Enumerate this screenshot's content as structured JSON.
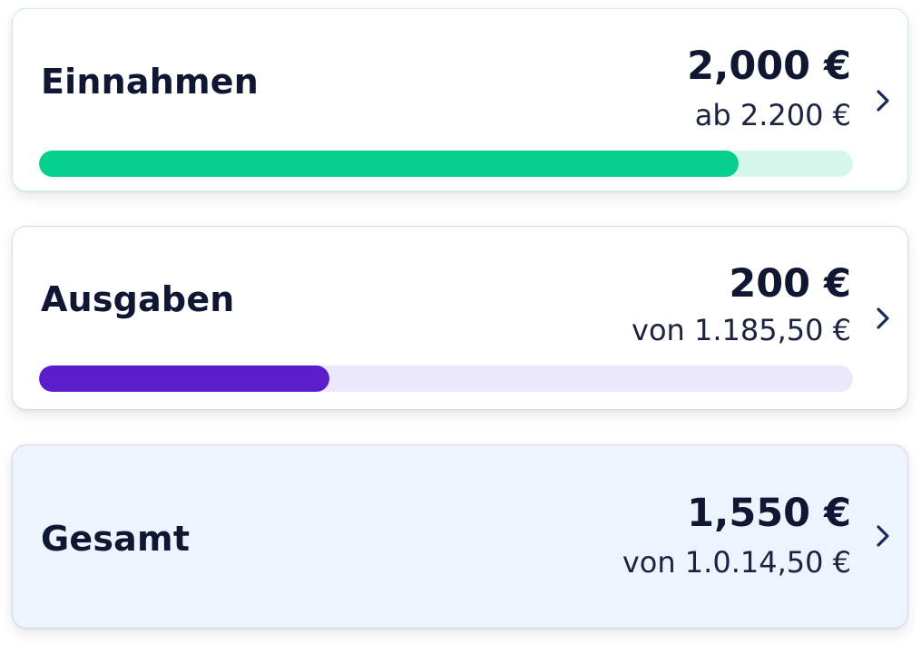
{
  "cards": {
    "income": {
      "label": "Einnahmen",
      "amount": "2,000 €",
      "sub": "ab 2.200 €",
      "progress": 0.859,
      "bar_color": "#06cf8f",
      "track_color": "#d5f6ea",
      "chevron_icon": "chevron-right-icon"
    },
    "expenses": {
      "label": "Ausgaben",
      "amount": "200 €",
      "sub": "von 1.185,50 €",
      "progress": 0.357,
      "bar_color": "#5b1ccb",
      "track_color": "#ece8fb",
      "chevron_icon": "chevron-right-icon"
    },
    "total": {
      "label": "Gesamt",
      "amount": "1,550 €",
      "sub": "von 1.0.14,50 €",
      "background_color": "#eef4fe",
      "chevron_icon": "chevron-right-icon"
    }
  },
  "colors": {
    "text_primary": "#0f1733"
  }
}
